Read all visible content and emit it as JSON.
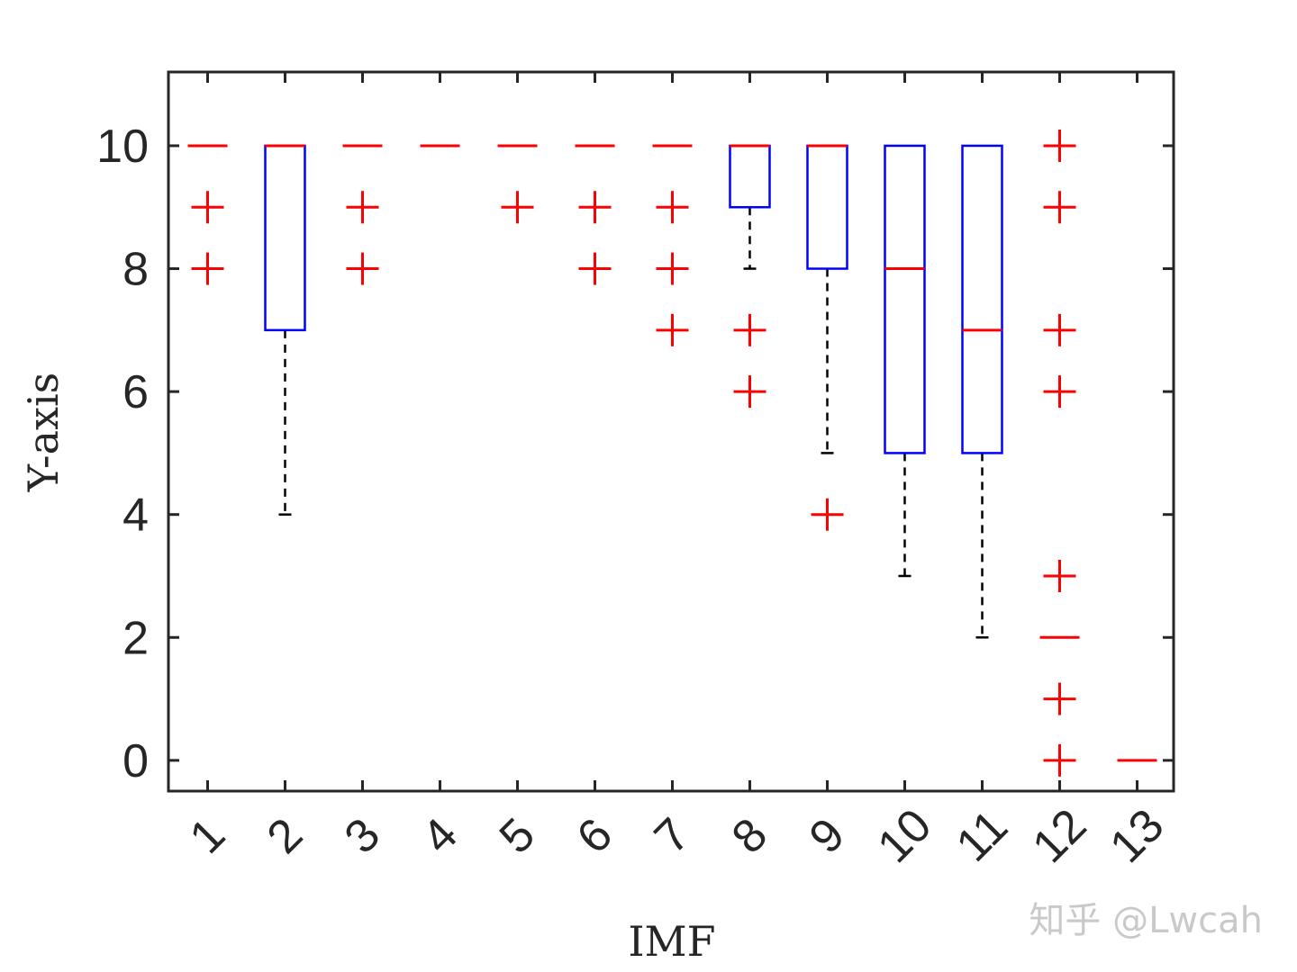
{
  "chart_data": {
    "type": "boxplot",
    "xlabel": "IMF",
    "ylabel": "Y-axis",
    "ylim": [
      -0.5,
      11.2
    ],
    "yticks": [
      0,
      2,
      4,
      6,
      8,
      10
    ],
    "categories": [
      "1",
      "2",
      "3",
      "4",
      "5",
      "6",
      "7",
      "8",
      "9",
      "10",
      "11",
      "12",
      "13"
    ],
    "tick_label_rotation_deg": -45,
    "grid": false,
    "colors": {
      "box": "#0000ff",
      "median": "#ff0000",
      "outlier": "#ff0000",
      "whisker": "#000000",
      "axes": "#262626"
    },
    "boxes": [
      {
        "category": "1",
        "q1": 10,
        "median": 10,
        "q3": 10,
        "whisker_low": 10,
        "whisker_high": 10,
        "outliers": [
          9,
          8
        ]
      },
      {
        "category": "2",
        "q1": 7,
        "median": 10,
        "q3": 10,
        "whisker_low": 4,
        "whisker_high": 10,
        "outliers": []
      },
      {
        "category": "3",
        "q1": 10,
        "median": 10,
        "q3": 10,
        "whisker_low": 10,
        "whisker_high": 10,
        "outliers": [
          9,
          8
        ]
      },
      {
        "category": "4",
        "q1": 10,
        "median": 10,
        "q3": 10,
        "whisker_low": 10,
        "whisker_high": 10,
        "outliers": []
      },
      {
        "category": "5",
        "q1": 10,
        "median": 10,
        "q3": 10,
        "whisker_low": 10,
        "whisker_high": 10,
        "outliers": [
          9
        ]
      },
      {
        "category": "6",
        "q1": 10,
        "median": 10,
        "q3": 10,
        "whisker_low": 10,
        "whisker_high": 10,
        "outliers": [
          9,
          8
        ]
      },
      {
        "category": "7",
        "q1": 10,
        "median": 10,
        "q3": 10,
        "whisker_low": 10,
        "whisker_high": 10,
        "outliers": [
          9,
          8,
          7
        ]
      },
      {
        "category": "8",
        "q1": 9,
        "median": 10,
        "q3": 10,
        "whisker_low": 8,
        "whisker_high": 10,
        "outliers": [
          7,
          6
        ]
      },
      {
        "category": "9",
        "q1": 8,
        "median": 10,
        "q3": 10,
        "whisker_low": 5,
        "whisker_high": 10,
        "outliers": [
          4
        ]
      },
      {
        "category": "10",
        "q1": 5,
        "median": 8,
        "q3": 10,
        "whisker_low": 3,
        "whisker_high": 10,
        "outliers": []
      },
      {
        "category": "11",
        "q1": 5,
        "median": 7,
        "q3": 10,
        "whisker_low": 2,
        "whisker_high": 10,
        "outliers": []
      },
      {
        "category": "12",
        "q1": 2,
        "median": 2,
        "q3": 2,
        "whisker_low": 2,
        "whisker_high": 2,
        "outliers": [
          10,
          9,
          7,
          6,
          3,
          1,
          0
        ]
      },
      {
        "category": "13",
        "q1": 0,
        "median": 0,
        "q3": 0,
        "whisker_low": 0,
        "whisker_high": 0,
        "outliers": []
      }
    ]
  },
  "watermark": "知乎 @Lwcah"
}
